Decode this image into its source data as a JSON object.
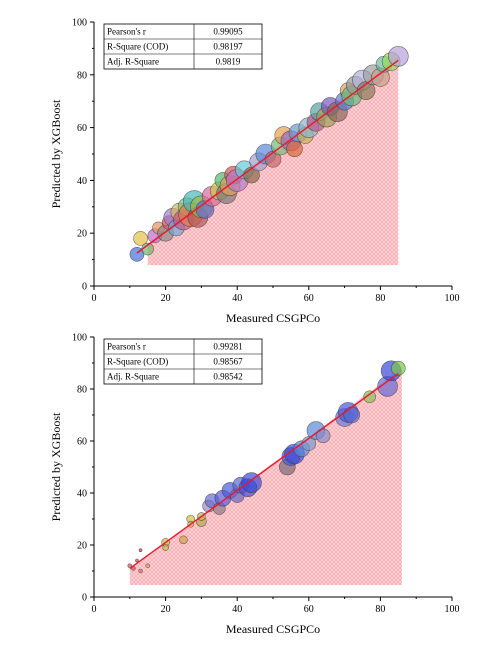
{
  "chart_data": [
    {
      "type": "scatter",
      "xlabel": "Measured CSGPCo",
      "ylabel": "Predicted by XGBoost",
      "xlim": [
        0,
        100
      ],
      "ylim": [
        0,
        100
      ],
      "xticks": [
        "0",
        "20",
        "40",
        "60",
        "80",
        "100"
      ],
      "yticks": [
        "0",
        "20",
        "40",
        "60",
        "80",
        "100"
      ],
      "grid": false,
      "stats": [
        {
          "label": "Pearson's r",
          "value": "0.99095"
        },
        {
          "label": "R-Square (COD)",
          "value": "0.98197"
        },
        {
          "label": "Adj. R-Square",
          "value": "0.9819"
        }
      ],
      "fit_line": {
        "color": "#e8192c",
        "x": [
          12,
          85
        ],
        "y": [
          12.5,
          85.5
        ]
      },
      "band": {
        "x": [
          15,
          85
        ],
        "color": "#ff9aa2"
      },
      "points": [
        {
          "x": 12,
          "y": 12,
          "r": 7,
          "color": "#4a6fd8"
        },
        {
          "x": 13,
          "y": 18,
          "r": 7,
          "color": "#e3c14a"
        },
        {
          "x": 15,
          "y": 14,
          "r": 6,
          "color": "#6fb86f"
        },
        {
          "x": 17,
          "y": 19,
          "r": 7,
          "color": "#c06ac8"
        },
        {
          "x": 18,
          "y": 22,
          "r": 6,
          "color": "#e8925a"
        },
        {
          "x": 20,
          "y": 20,
          "r": 8,
          "color": "#8a8a8a"
        },
        {
          "x": 21,
          "y": 24,
          "r": 7,
          "color": "#d44e4e"
        },
        {
          "x": 22,
          "y": 26,
          "r": 9,
          "color": "#a07bd0"
        },
        {
          "x": 23,
          "y": 22,
          "r": 8,
          "color": "#6fa8d8"
        },
        {
          "x": 24,
          "y": 28,
          "r": 9,
          "color": "#d8b65a"
        },
        {
          "x": 25,
          "y": 25,
          "r": 10,
          "color": "#c45a8a"
        },
        {
          "x": 26,
          "y": 30,
          "r": 9,
          "color": "#7ac08a"
        },
        {
          "x": 27,
          "y": 27,
          "r": 12,
          "color": "#e07a4a"
        },
        {
          "x": 28,
          "y": 32,
          "r": 11,
          "color": "#4ab8b8"
        },
        {
          "x": 29,
          "y": 26,
          "r": 10,
          "color": "#b05a5a"
        },
        {
          "x": 30,
          "y": 30,
          "r": 11,
          "color": "#9ab84a"
        },
        {
          "x": 31,
          "y": 29,
          "r": 9,
          "color": "#6a6ad0"
        },
        {
          "x": 33,
          "y": 34,
          "r": 10,
          "color": "#d86a9a"
        },
        {
          "x": 35,
          "y": 36,
          "r": 9,
          "color": "#c8c84a"
        },
        {
          "x": 36,
          "y": 40,
          "r": 8,
          "color": "#5ab86a"
        },
        {
          "x": 37,
          "y": 35,
          "r": 10,
          "color": "#7a7a7a"
        },
        {
          "x": 38,
          "y": 38,
          "r": 10,
          "color": "#e0a05a"
        },
        {
          "x": 39,
          "y": 42,
          "r": 9,
          "color": "#d85050"
        },
        {
          "x": 40,
          "y": 40,
          "r": 11,
          "color": "#b07ac8"
        },
        {
          "x": 42,
          "y": 44,
          "r": 9,
          "color": "#6ac8d8"
        },
        {
          "x": 44,
          "y": 42,
          "r": 8,
          "color": "#8a6a4a"
        },
        {
          "x": 46,
          "y": 47,
          "r": 9,
          "color": "#a0a0d0"
        },
        {
          "x": 48,
          "y": 50,
          "r": 10,
          "color": "#5a8ad8"
        },
        {
          "x": 50,
          "y": 48,
          "r": 8,
          "color": "#c86a6a"
        },
        {
          "x": 52,
          "y": 53,
          "r": 9,
          "color": "#7ab87a"
        },
        {
          "x": 53,
          "y": 57,
          "r": 9,
          "color": "#e8a050"
        },
        {
          "x": 55,
          "y": 55,
          "r": 10,
          "color": "#9a6ac0"
        },
        {
          "x": 56,
          "y": 52,
          "r": 8,
          "color": "#d86a3a"
        },
        {
          "x": 57,
          "y": 58,
          "r": 9,
          "color": "#6a9ad0"
        },
        {
          "x": 59,
          "y": 57,
          "r": 8,
          "color": "#c8b05a"
        },
        {
          "x": 60,
          "y": 60,
          "r": 10,
          "color": "#8ab8c8"
        },
        {
          "x": 62,
          "y": 62,
          "r": 9,
          "color": "#b85a8a"
        },
        {
          "x": 63,
          "y": 66,
          "r": 9,
          "color": "#5aa0a0"
        },
        {
          "x": 65,
          "y": 64,
          "r": 10,
          "color": "#a0a05a"
        },
        {
          "x": 66,
          "y": 68,
          "r": 9,
          "color": "#7a5ac0"
        },
        {
          "x": 68,
          "y": 66,
          "r": 10,
          "color": "#8a6a5a"
        },
        {
          "x": 70,
          "y": 70,
          "r": 9,
          "color": "#5a7ad0"
        },
        {
          "x": 71,
          "y": 74,
          "r": 8,
          "color": "#d8a06a"
        },
        {
          "x": 72,
          "y": 72,
          "r": 10,
          "color": "#6ab87a"
        },
        {
          "x": 73,
          "y": 76,
          "r": 9,
          "color": "#9a9a9a"
        },
        {
          "x": 75,
          "y": 78,
          "r": 10,
          "color": "#b0b0d8"
        },
        {
          "x": 76,
          "y": 74,
          "r": 9,
          "color": "#8a7a5a"
        },
        {
          "x": 78,
          "y": 80,
          "r": 10,
          "color": "#a0a0a0"
        },
        {
          "x": 80,
          "y": 79,
          "r": 9,
          "color": "#c8a08a"
        },
        {
          "x": 81,
          "y": 84,
          "r": 8,
          "color": "#6ac0a0"
        },
        {
          "x": 83,
          "y": 85,
          "r": 9,
          "color": "#9ad85a"
        },
        {
          "x": 85,
          "y": 87,
          "r": 10,
          "color": "#b8a0d8"
        }
      ]
    },
    {
      "type": "scatter",
      "xlabel": "Measured CSGPCo",
      "ylabel": "Predicted by XGBoost",
      "xlim": [
        0,
        100
      ],
      "ylim": [
        0,
        100
      ],
      "xticks": [
        "0",
        "20",
        "40",
        "60",
        "80",
        "100"
      ],
      "yticks": [
        "0",
        "20",
        "40",
        "60",
        "80",
        "100"
      ],
      "grid": false,
      "stats": [
        {
          "label": "Pearson's r",
          "value": "0.99281"
        },
        {
          "label": "R-Square (COD)",
          "value": "0.98567"
        },
        {
          "label": "Adj. R-Square",
          "value": "0.98542"
        }
      ],
      "fit_line": {
        "color": "#e8192c",
        "x": [
          10,
          85
        ],
        "y": [
          11,
          86
        ]
      },
      "band": {
        "x": [
          10,
          86
        ],
        "color": "#ff9aa2"
      },
      "points": [
        {
          "x": 10,
          "y": 12,
          "r": 2,
          "color": "#d85050"
        },
        {
          "x": 11,
          "y": 11,
          "r": 2,
          "color": "#d85050"
        },
        {
          "x": 12,
          "y": 14,
          "r": 1.5,
          "color": "#c05050"
        },
        {
          "x": 13,
          "y": 10,
          "r": 2,
          "color": "#d86a6a"
        },
        {
          "x": 13,
          "y": 18,
          "r": 1.5,
          "color": "#c84040"
        },
        {
          "x": 15,
          "y": 12,
          "r": 2,
          "color": "#d8a060"
        },
        {
          "x": 20,
          "y": 21,
          "r": 4,
          "color": "#c8b84a"
        },
        {
          "x": 20,
          "y": 19,
          "r": 3,
          "color": "#b8c04a"
        },
        {
          "x": 25,
          "y": 22,
          "r": 4,
          "color": "#d8a050"
        },
        {
          "x": 27,
          "y": 30,
          "r": 4,
          "color": "#c8c04a"
        },
        {
          "x": 27,
          "y": 28,
          "r": 3,
          "color": "#d8b050"
        },
        {
          "x": 30,
          "y": 29,
          "r": 5,
          "color": "#b8a84a"
        },
        {
          "x": 30,
          "y": 31,
          "r": 4,
          "color": "#c8b05a"
        },
        {
          "x": 32,
          "y": 35,
          "r": 6,
          "color": "#9a8ac0"
        },
        {
          "x": 33,
          "y": 37,
          "r": 7,
          "color": "#6a6ad0"
        },
        {
          "x": 35,
          "y": 34,
          "r": 6,
          "color": "#8a7a8a"
        },
        {
          "x": 36,
          "y": 38,
          "r": 8,
          "color": "#5a5ad8"
        },
        {
          "x": 38,
          "y": 41,
          "r": 8,
          "color": "#4a5ad8"
        },
        {
          "x": 40,
          "y": 39,
          "r": 7,
          "color": "#6a6ac0"
        },
        {
          "x": 41,
          "y": 43,
          "r": 8,
          "color": "#5a6ad0"
        },
        {
          "x": 43,
          "y": 42,
          "r": 9,
          "color": "#4a4ad8"
        },
        {
          "x": 44,
          "y": 44,
          "r": 10,
          "color": "#3a4ad8"
        },
        {
          "x": 54,
          "y": 50,
          "r": 8,
          "color": "#7a6a7a"
        },
        {
          "x": 55,
          "y": 54,
          "r": 9,
          "color": "#4a5ad0"
        },
        {
          "x": 56,
          "y": 55,
          "r": 10,
          "color": "#3a4ad8"
        },
        {
          "x": 58,
          "y": 57,
          "r": 8,
          "color": "#5a8ad8"
        },
        {
          "x": 60,
          "y": 59,
          "r": 7,
          "color": "#7a9ad0"
        },
        {
          "x": 62,
          "y": 64,
          "r": 9,
          "color": "#5a8ad8"
        },
        {
          "x": 64,
          "y": 62,
          "r": 7,
          "color": "#8a8ac8"
        },
        {
          "x": 70,
          "y": 69,
          "r": 9,
          "color": "#6a7ad8"
        },
        {
          "x": 71,
          "y": 71,
          "r": 10,
          "color": "#4a5ad8"
        },
        {
          "x": 72,
          "y": 70,
          "r": 8,
          "color": "#5a6ad0"
        },
        {
          "x": 77,
          "y": 77,
          "r": 6,
          "color": "#8ac05a"
        },
        {
          "x": 82,
          "y": 81,
          "r": 10,
          "color": "#6a6ad0"
        },
        {
          "x": 83,
          "y": 87,
          "r": 10,
          "color": "#3a4ad8"
        },
        {
          "x": 85,
          "y": 88,
          "r": 7,
          "color": "#7ac84a"
        }
      ]
    }
  ]
}
